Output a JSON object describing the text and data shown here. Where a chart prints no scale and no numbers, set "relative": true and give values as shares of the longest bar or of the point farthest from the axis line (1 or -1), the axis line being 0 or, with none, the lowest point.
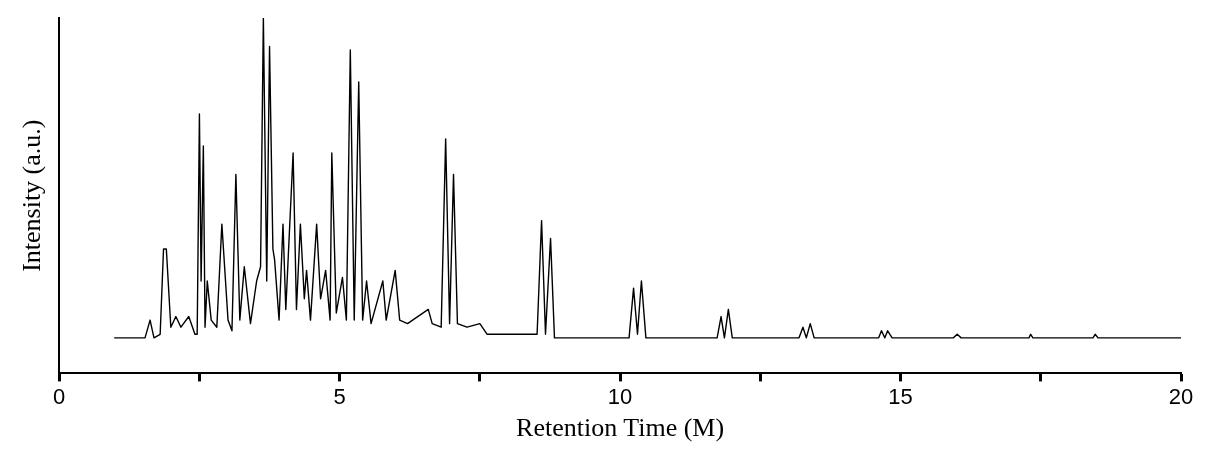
{
  "chart_data": {
    "type": "line",
    "xlabel": "Retention Time (M)",
    "ylabel": "Intensity (a.u.)",
    "relative": true,
    "xlim": [
      0,
      20
    ],
    "xticks": [
      0,
      {
        "value": 2.5,
        "label": null
      },
      5,
      {
        "value": 7.5,
        "label": null
      },
      10,
      {
        "value": 12.5,
        "label": null
      },
      15,
      {
        "value": 17.5,
        "label": null
      },
      20
    ],
    "grid": false,
    "legend": false,
    "marker": "none",
    "line_style": "solid",
    "series": [
      {
        "color": "#000000",
        "x": [
          0.98,
          1.53,
          1.62,
          1.69,
          1.8,
          1.86,
          1.91,
          1.99,
          2.08,
          2.17,
          2.31,
          2.42,
          2.46,
          2.5,
          2.53,
          2.57,
          2.6,
          2.64,
          2.71,
          2.81,
          2.9,
          3.01,
          3.08,
          3.15,
          3.22,
          3.3,
          3.41,
          3.52,
          3.59,
          3.64,
          3.7,
          3.75,
          3.81,
          3.84,
          3.92,
          3.99,
          4.04,
          4.17,
          4.23,
          4.3,
          4.37,
          4.41,
          4.48,
          4.59,
          4.66,
          4.75,
          4.83,
          4.86,
          4.94,
          5.05,
          5.12,
          5.19,
          5.26,
          5.34,
          5.41,
          5.48,
          5.56,
          5.77,
          5.83,
          5.99,
          6.07,
          6.21,
          6.58,
          6.65,
          6.81,
          6.89,
          6.96,
          7.03,
          7.1,
          7.27,
          7.5,
          7.63,
          8.36,
          8.52,
          8.6,
          8.67,
          8.76,
          8.83,
          9.64,
          10.16,
          10.24,
          10.31,
          10.38,
          10.46,
          11.09,
          11.73,
          11.8,
          11.86,
          11.93,
          12.0,
          12.91,
          13.19,
          13.26,
          13.32,
          13.39,
          13.46,
          14.37,
          14.61,
          14.66,
          14.72,
          14.77,
          14.85,
          15.94,
          16.01,
          16.08,
          17.29,
          17.32,
          17.36,
          18.43,
          18.47,
          18.52,
          20.0
        ],
        "values": [
          0.1,
          0.1,
          0.15,
          0.1,
          0.11,
          0.35,
          0.35,
          0.13,
          0.16,
          0.13,
          0.16,
          0.11,
          0.11,
          0.73,
          0.26,
          0.64,
          0.13,
          0.26,
          0.15,
          0.13,
          0.42,
          0.15,
          0.12,
          0.56,
          0.15,
          0.3,
          0.14,
          0.26,
          0.3,
          1.0,
          0.26,
          0.92,
          0.35,
          0.32,
          0.15,
          0.42,
          0.18,
          0.62,
          0.18,
          0.42,
          0.21,
          0.29,
          0.15,
          0.42,
          0.21,
          0.29,
          0.15,
          0.62,
          0.17,
          0.27,
          0.15,
          0.91,
          0.15,
          0.82,
          0.15,
          0.26,
          0.14,
          0.26,
          0.15,
          0.29,
          0.15,
          0.14,
          0.18,
          0.14,
          0.13,
          0.66,
          0.14,
          0.56,
          0.14,
          0.13,
          0.14,
          0.11,
          0.11,
          0.11,
          0.43,
          0.11,
          0.38,
          0.1,
          0.1,
          0.1,
          0.24,
          0.11,
          0.26,
          0.1,
          0.1,
          0.1,
          0.16,
          0.1,
          0.18,
          0.1,
          0.1,
          0.1,
          0.13,
          0.1,
          0.14,
          0.1,
          0.1,
          0.1,
          0.12,
          0.1,
          0.12,
          0.1,
          0.1,
          0.11,
          0.1,
          0.1,
          0.11,
          0.1,
          0.1,
          0.11,
          0.1,
          0.1
        ]
      }
    ]
  }
}
